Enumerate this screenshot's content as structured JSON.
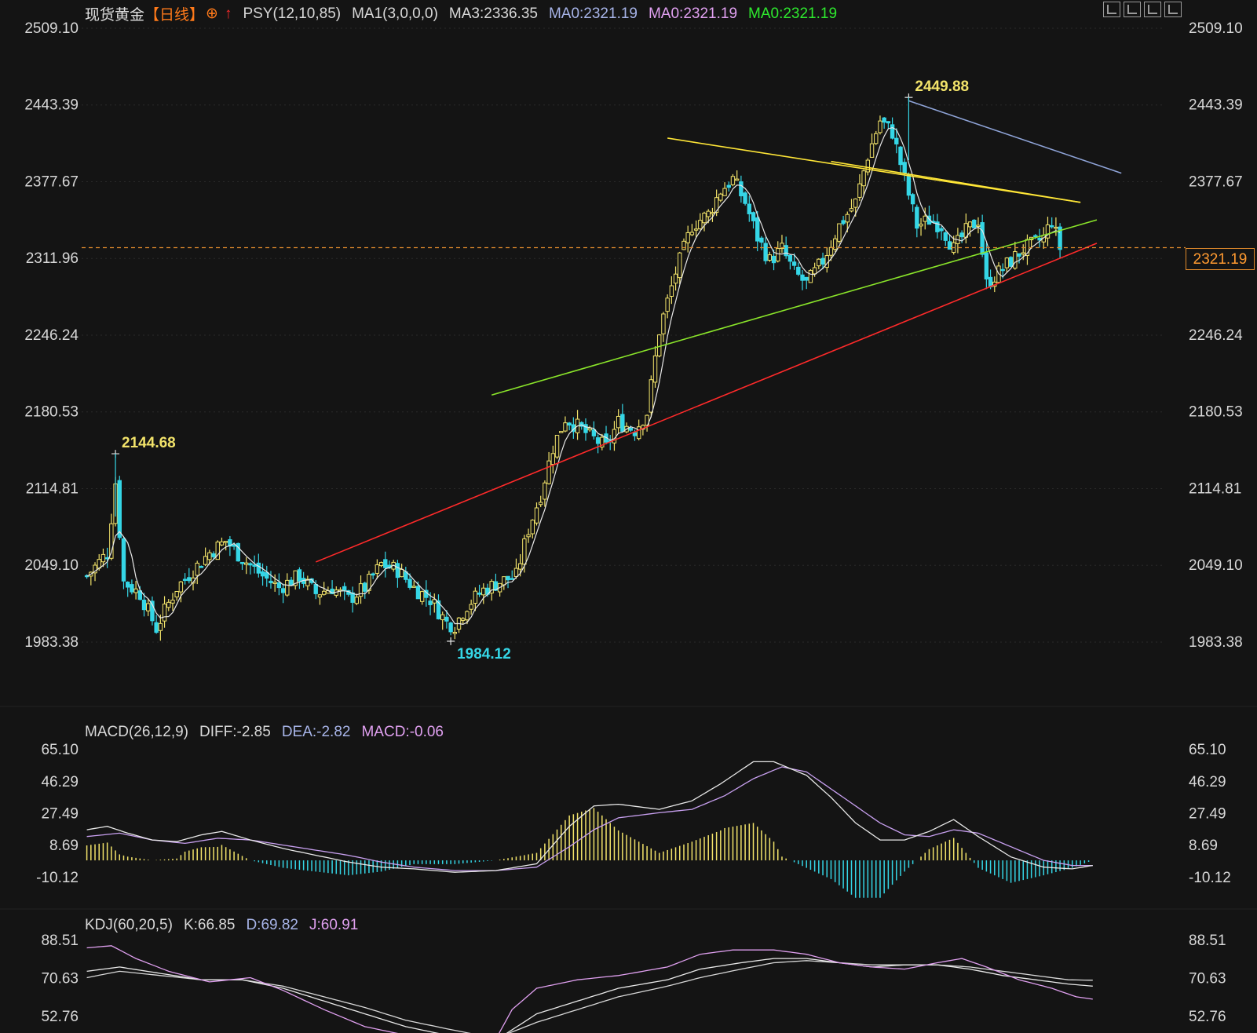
{
  "header": {
    "symbol": "现货黄金",
    "period": "【日线】",
    "indicators": [
      {
        "label": "PSY(12,10,85)",
        "color": "#d8d8d8"
      },
      {
        "label": "MA1(3,0,0,0)",
        "color": "#d8d8d8"
      },
      {
        "label": "MA3:2336.35",
        "color": "#d8d8d8"
      },
      {
        "label": "MA0:2321.19",
        "color": "#a7b4e8"
      },
      {
        "label": "MA0:2321.19",
        "color": "#e0a0f0"
      },
      {
        "label": "MA0:2321.19",
        "color": "#2ee82e"
      }
    ]
  },
  "macd_legend": [
    {
      "label": "MACD(26,12,9)",
      "color": "#d8d8d8"
    },
    {
      "label": "DIFF:-2.85",
      "color": "#d8d8d8"
    },
    {
      "label": "DEA:-2.82",
      "color": "#a7b4e8"
    },
    {
      "label": "MACD:-0.06",
      "color": "#e0a0f0"
    }
  ],
  "kdj_legend": [
    {
      "label": "KDJ(60,20,5)",
      "color": "#d8d8d8"
    },
    {
      "label": "K:66.85",
      "color": "#d8d8d8"
    },
    {
      "label": "D:69.82",
      "color": "#a7b4e8"
    },
    {
      "label": "J:60.91",
      "color": "#e0a0f0"
    }
  ],
  "current_price_label": "2321.19",
  "chart_data": [
    {
      "type": "candlestick",
      "panel": "price",
      "y_ticks": [
        "2509.10",
        "2443.39",
        "2377.67",
        "2311.96",
        "2246.24",
        "2180.53",
        "2114.81",
        "2049.10",
        "1983.38"
      ],
      "y_range": [
        1983.38,
        2509.1
      ],
      "current_price": 2321.19,
      "annotations": [
        {
          "text": "2144.68",
          "value": 2144.68,
          "kind": "high"
        },
        {
          "text": "1984.12",
          "value": 1984.12,
          "kind": "low"
        },
        {
          "text": "2449.88",
          "value": 2449.88,
          "kind": "high"
        }
      ],
      "colors": {
        "up": "#f2e36a",
        "down": "#35d6e6",
        "ma": "#e8e8e8",
        "support": "#ff2a2a",
        "trend": "#8ae52a",
        "resistance": "#ffe637",
        "channel": "#8fa4d8",
        "price_line": "#e08a2c"
      },
      "anchors": [
        [
          0,
          2040
        ],
        [
          5,
          2060
        ],
        [
          7,
          2120
        ],
        [
          9,
          2035
        ],
        [
          13,
          2025
        ],
        [
          17,
          1995
        ],
        [
          19,
          2010
        ],
        [
          22,
          2030
        ],
        [
          26,
          2045
        ],
        [
          30,
          2060
        ],
        [
          34,
          2070
        ],
        [
          38,
          2055
        ],
        [
          43,
          2040
        ],
        [
          47,
          2030
        ],
        [
          52,
          2040
        ],
        [
          56,
          2025
        ],
        [
          60,
          2030
        ],
        [
          64,
          2020
        ],
        [
          68,
          2030
        ],
        [
          72,
          2050
        ],
        [
          76,
          2045
        ],
        [
          80,
          2030
        ],
        [
          84,
          2020
        ],
        [
          88,
          2000
        ],
        [
          90,
          1998
        ],
        [
          93,
          2015
        ],
        [
          97,
          2028
        ],
        [
          101,
          2035
        ],
        [
          105,
          2040
        ],
        [
          108,
          2080
        ],
        [
          111,
          2110
        ],
        [
          114,
          2150
        ],
        [
          117,
          2175
        ],
        [
          120,
          2168
        ],
        [
          123,
          2160
        ],
        [
          127,
          2150
        ],
        [
          130,
          2172
        ],
        [
          134,
          2165
        ],
        [
          137,
          2180
        ],
        [
          140,
          2250
        ],
        [
          144,
          2300
        ],
        [
          148,
          2340
        ],
        [
          152,
          2350
        ],
        [
          155,
          2370
        ],
        [
          158,
          2380
        ],
        [
          161,
          2360
        ],
        [
          164,
          2330
        ],
        [
          167,
          2310
        ],
        [
          170,
          2320
        ],
        [
          173,
          2300
        ],
        [
          176,
          2290
        ],
        [
          180,
          2310
        ],
        [
          184,
          2340
        ],
        [
          188,
          2360
        ],
        [
          191,
          2400
        ],
        [
          194,
          2430
        ],
        [
          197,
          2420
        ],
        [
          200,
          2380
        ],
        [
          203,
          2340
        ],
        [
          206,
          2345
        ],
        [
          209,
          2340
        ],
        [
          212,
          2320
        ],
        [
          215,
          2335
        ],
        [
          218,
          2345
        ],
        [
          220,
          2290
        ],
        [
          223,
          2300
        ],
        [
          226,
          2310
        ],
        [
          229,
          2320
        ],
        [
          232,
          2325
        ],
        [
          234,
          2330
        ],
        [
          236,
          2345
        ],
        [
          238,
          2321
        ]
      ],
      "trendlines": [
        {
          "role": "support",
          "from": [
            56,
            2052
          ],
          "to": [
            247,
            2325
          ]
        },
        {
          "role": "trend",
          "from": [
            99,
            2195
          ],
          "to": [
            247,
            2345
          ]
        },
        {
          "role": "resistance",
          "from": [
            142,
            2415
          ],
          "to": [
            243,
            2360
          ]
        },
        {
          "role": "resistance",
          "from": [
            182,
            2395
          ],
          "to": [
            243,
            2360
          ]
        },
        {
          "role": "channel",
          "from": [
            201,
            2447
          ],
          "to": [
            253,
            2385
          ]
        }
      ]
    },
    {
      "type": "histogram+line",
      "panel": "macd",
      "y_ticks": [
        "65.10",
        "46.29",
        "27.49",
        "8.69",
        "-10.12"
      ],
      "y_range": [
        -10.12,
        65.1
      ],
      "colors": {
        "pos": "#f2e36a",
        "neg": "#35d6e6",
        "diff": "#e8e8e8",
        "dea": "#c8a0f0"
      },
      "diff_anchors": [
        [
          0,
          18
        ],
        [
          5,
          20
        ],
        [
          10,
          16
        ],
        [
          16,
          12
        ],
        [
          22,
          11
        ],
        [
          28,
          15
        ],
        [
          33,
          17
        ],
        [
          40,
          12
        ],
        [
          48,
          7
        ],
        [
          56,
          3
        ],
        [
          64,
          -1
        ],
        [
          72,
          -4
        ],
        [
          80,
          -5
        ],
        [
          90,
          -7
        ],
        [
          100,
          -6
        ],
        [
          110,
          -2
        ],
        [
          118,
          20
        ],
        [
          124,
          32
        ],
        [
          130,
          33
        ],
        [
          140,
          30
        ],
        [
          148,
          35
        ],
        [
          155,
          45
        ],
        [
          163,
          58
        ],
        [
          168,
          58
        ],
        [
          176,
          50
        ],
        [
          182,
          37
        ],
        [
          188,
          22
        ],
        [
          194,
          12
        ],
        [
          200,
          12
        ],
        [
          206,
          17
        ],
        [
          212,
          24
        ],
        [
          218,
          14
        ],
        [
          226,
          2
        ],
        [
          234,
          -4
        ],
        [
          241,
          -5
        ],
        [
          246,
          -3
        ]
      ],
      "dea_anchors": [
        [
          0,
          14
        ],
        [
          8,
          16
        ],
        [
          16,
          12
        ],
        [
          24,
          10
        ],
        [
          32,
          13
        ],
        [
          40,
          12
        ],
        [
          48,
          9
        ],
        [
          56,
          6
        ],
        [
          64,
          3
        ],
        [
          72,
          -1
        ],
        [
          80,
          -4
        ],
        [
          90,
          -6
        ],
        [
          100,
          -6
        ],
        [
          110,
          -4
        ],
        [
          118,
          8
        ],
        [
          124,
          18
        ],
        [
          130,
          25
        ],
        [
          140,
          28
        ],
        [
          148,
          30
        ],
        [
          156,
          38
        ],
        [
          163,
          48
        ],
        [
          170,
          55
        ],
        [
          176,
          52
        ],
        [
          182,
          42
        ],
        [
          188,
          32
        ],
        [
          194,
          22
        ],
        [
          200,
          15
        ],
        [
          206,
          14
        ],
        [
          212,
          18
        ],
        [
          218,
          16
        ],
        [
          226,
          8
        ],
        [
          234,
          0
        ],
        [
          241,
          -3
        ],
        [
          246,
          -3
        ]
      ]
    },
    {
      "type": "line",
      "panel": "kdj",
      "y_ticks": [
        "88.51",
        "70.63",
        "52.76"
      ],
      "y_range": [
        45,
        88.51
      ],
      "colors": {
        "k": "#e8e8e8",
        "d": "#d8d8d8",
        "j": "#e0a0f0"
      },
      "k_anchors": [
        [
          0,
          74
        ],
        [
          8,
          76
        ],
        [
          18,
          73
        ],
        [
          28,
          70
        ],
        [
          38,
          70
        ],
        [
          48,
          66
        ],
        [
          58,
          60
        ],
        [
          68,
          54
        ],
        [
          78,
          48
        ],
        [
          88,
          44
        ],
        [
          96,
          42
        ],
        [
          102,
          44
        ],
        [
          110,
          54
        ],
        [
          120,
          60
        ],
        [
          130,
          66
        ],
        [
          142,
          70
        ],
        [
          150,
          75
        ],
        [
          160,
          78
        ],
        [
          168,
          80
        ],
        [
          176,
          80
        ],
        [
          184,
          78
        ],
        [
          192,
          76
        ],
        [
          200,
          77
        ],
        [
          208,
          77
        ],
        [
          216,
          75
        ],
        [
          224,
          72
        ],
        [
          232,
          70
        ],
        [
          240,
          68
        ],
        [
          246,
          67
        ]
      ],
      "d_anchors": [
        [
          0,
          71
        ],
        [
          8,
          74
        ],
        [
          18,
          72
        ],
        [
          28,
          70
        ],
        [
          38,
          70
        ],
        [
          48,
          67
        ],
        [
          58,
          62
        ],
        [
          68,
          57
        ],
        [
          78,
          51
        ],
        [
          88,
          47
        ],
        [
          96,
          44
        ],
        [
          102,
          44
        ],
        [
          110,
          50
        ],
        [
          120,
          56
        ],
        [
          130,
          62
        ],
        [
          142,
          67
        ],
        [
          150,
          71
        ],
        [
          160,
          75
        ],
        [
          168,
          78
        ],
        [
          176,
          79
        ],
        [
          184,
          78
        ],
        [
          192,
          77
        ],
        [
          200,
          77
        ],
        [
          208,
          77
        ],
        [
          216,
          76
        ],
        [
          224,
          74
        ],
        [
          232,
          72
        ],
        [
          240,
          70
        ],
        [
          246,
          69.8
        ]
      ],
      "j_anchors": [
        [
          0,
          85
        ],
        [
          6,
          86
        ],
        [
          12,
          80
        ],
        [
          20,
          74
        ],
        [
          30,
          69
        ],
        [
          40,
          71
        ],
        [
          48,
          65
        ],
        [
          58,
          56
        ],
        [
          68,
          48
        ],
        [
          78,
          44
        ],
        [
          86,
          40
        ],
        [
          94,
          38
        ],
        [
          100,
          42
        ],
        [
          104,
          56
        ],
        [
          110,
          66
        ],
        [
          120,
          70
        ],
        [
          130,
          72
        ],
        [
          142,
          76
        ],
        [
          150,
          82
        ],
        [
          158,
          84
        ],
        [
          168,
          84
        ],
        [
          176,
          82
        ],
        [
          184,
          78
        ],
        [
          192,
          76
        ],
        [
          200,
          75
        ],
        [
          208,
          78
        ],
        [
          214,
          80
        ],
        [
          220,
          76
        ],
        [
          228,
          70
        ],
        [
          236,
          66
        ],
        [
          242,
          62
        ],
        [
          246,
          60.9
        ]
      ]
    }
  ]
}
